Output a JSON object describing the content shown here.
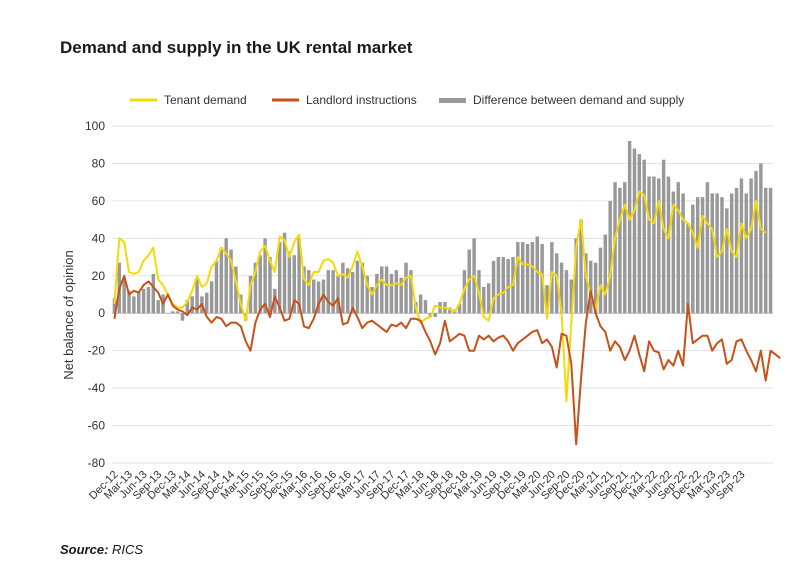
{
  "title": "Demand and supply in the UK rental market",
  "source": {
    "label": "Source:",
    "text": "RICS"
  },
  "chart_data": {
    "type": "bar+line",
    "ylabel": "Net balance of opinion",
    "ylim": [
      -80,
      100
    ],
    "yticks": [
      100,
      80,
      60,
      40,
      20,
      0,
      -20,
      -40,
      -60,
      -80
    ],
    "grid": true,
    "legend_position": "top",
    "x_tick_labels": [
      "Dec-12",
      "Mar-13",
      "Jun-13",
      "Sep-13",
      "Dec-13",
      "Mar-14",
      "Jun-14",
      "Sep-14",
      "Dec-14",
      "Mar-15",
      "Jun-15",
      "Sep-15",
      "Dec-15",
      "Mar-16",
      "Jun-16",
      "Sep-16",
      "Dec-16",
      "Mar-17",
      "Jun-17",
      "Sep-17",
      "Dec-17",
      "Mar-18",
      "Jun-18",
      "Sep-18",
      "Dec-18",
      "Mar-19",
      "Jun-19",
      "Sep-19",
      "Dec-19",
      "Mar-20",
      "Jun-20",
      "Sep-20",
      "Dec-20",
      "Mar-21",
      "Jun-21",
      "Sep-21",
      "Dec-21",
      "Mar-22",
      "Jun-22",
      "Sep-22",
      "Dec-22",
      "Mar-23",
      "Jun-23",
      "Sep-23"
    ],
    "x_start": "Dec-12",
    "x_end": "Sep-23",
    "series": [
      {
        "name": "Tenant demand",
        "kind": "line",
        "color": "#f5d90a",
        "values": [
          5,
          40,
          38,
          22,
          21,
          22,
          28,
          31,
          35,
          18,
          15,
          10,
          5,
          3,
          3,
          6,
          12,
          20,
          14,
          16,
          25,
          28,
          35,
          32,
          28,
          17,
          5,
          -4,
          15,
          22,
          33,
          36,
          28,
          22,
          41,
          39,
          30,
          38,
          42,
          18,
          15,
          22,
          22,
          28,
          29,
          27,
          20,
          21,
          19,
          25,
          33,
          25,
          15,
          10,
          15,
          18,
          15,
          15,
          16,
          15,
          19,
          20,
          3,
          -5,
          -3,
          -2,
          4,
          3,
          3,
          2,
          1,
          5,
          13,
          18,
          20,
          11,
          -2,
          -4,
          8,
          10,
          11,
          14,
          15,
          30,
          26,
          26,
          25,
          22,
          21,
          -3,
          22,
          20,
          0,
          -47,
          -5,
          35,
          50,
          20,
          10,
          2,
          15,
          10,
          20,
          40,
          50,
          58,
          50,
          55,
          65,
          63,
          50,
          48,
          60,
          45,
          40,
          58,
          55,
          50,
          48,
          43,
          35,
          52,
          48,
          45,
          30,
          33,
          45,
          33,
          30,
          48,
          40,
          45,
          60,
          45,
          43
        ]
      },
      {
        "name": "Landlord instructions",
        "kind": "line",
        "color": "#c8511b",
        "values": [
          -3,
          13,
          20,
          10,
          12,
          11,
          15,
          17,
          14,
          11,
          5,
          10,
          4,
          2,
          1,
          -1,
          3,
          2,
          5,
          -2,
          -5,
          -2,
          -3,
          -7,
          -5,
          -5,
          -7,
          -15,
          -20,
          -5,
          2,
          5,
          -2,
          9,
          3,
          -4,
          -3,
          7,
          5,
          -7,
          -8,
          -3,
          5,
          10,
          6,
          4,
          8,
          -6,
          -5,
          3,
          -2,
          -8,
          -5,
          -4,
          -6,
          -8,
          -10,
          -6,
          -7,
          -5,
          -8,
          -3,
          -3,
          -4,
          -10,
          -15,
          -22,
          -16,
          -4,
          -15,
          -13,
          -11,
          -12,
          -20,
          -20,
          -12,
          -14,
          -12,
          -15,
          -13,
          -12,
          -15,
          -20,
          -16,
          -14,
          -12,
          -10,
          -9,
          -16,
          -14,
          -18,
          -29,
          -11,
          -12,
          -27,
          -70,
          -35,
          -5,
          12,
          0,
          -7,
          -10,
          -20,
          -15,
          -18,
          -25,
          -20,
          -12,
          -22,
          -31,
          -15,
          -20,
          -21,
          -30,
          -25,
          -28,
          -20,
          -28,
          5,
          -16,
          -14,
          -12,
          -12,
          -20,
          -16,
          -14,
          -27,
          -25,
          -15,
          -14,
          -20,
          -25,
          -31,
          -20,
          -36,
          -20,
          -22,
          -24
        ]
      },
      {
        "name": "Difference between demand and supply",
        "kind": "bar",
        "color": "#999999",
        "values": [
          8,
          27,
          18,
          12,
          9,
          11,
          13,
          14,
          21,
          7,
          10,
          0,
          1,
          1,
          -4,
          7,
          9,
          18,
          9,
          11,
          17,
          28,
          35,
          40,
          34,
          25,
          10,
          -4,
          20,
          27,
          31,
          40,
          30,
          13,
          38,
          43,
          33,
          31,
          40,
          25,
          23,
          18,
          17,
          18,
          23,
          23,
          20,
          27,
          24,
          22,
          28,
          27,
          20,
          14,
          21,
          25,
          25,
          21,
          23,
          19,
          27,
          23,
          6,
          10,
          7,
          -2,
          -2,
          6,
          6,
          3,
          2,
          5,
          23,
          34,
          40,
          23,
          14,
          16,
          28,
          30,
          30,
          29,
          30,
          38,
          38,
          37,
          38,
          41,
          37,
          15,
          38,
          32,
          27,
          23,
          18,
          40,
          50,
          32,
          28,
          27,
          35,
          42,
          60,
          70,
          67,
          70,
          92,
          88,
          85,
          82,
          73,
          73,
          72,
          82,
          73,
          65,
          70,
          64,
          48,
          58,
          62,
          62,
          70,
          64,
          64,
          62,
          56,
          64,
          67,
          72,
          64,
          72,
          76,
          80,
          67,
          67
        ]
      }
    ]
  }
}
